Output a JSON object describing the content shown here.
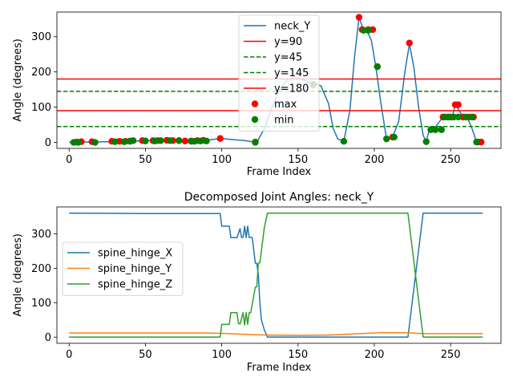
{
  "chart_data": [
    {
      "type": "line",
      "title": "",
      "xlabel": "Frame Index",
      "ylabel": "Angle (degrees)",
      "xlim": [
        -8,
        283
      ],
      "ylim": [
        -17,
        370
      ],
      "xticks": [
        0,
        50,
        100,
        150,
        200,
        250
      ],
      "yticks": [
        0,
        100,
        200,
        300
      ],
      "legend_position": "top-center",
      "series": [
        {
          "name": "neck_Y",
          "kind": "line",
          "color": "#1f77b4",
          "x": [
            0,
            5,
            10,
            15,
            20,
            25,
            30,
            35,
            40,
            45,
            50,
            55,
            60,
            65,
            70,
            75,
            80,
            85,
            90,
            95,
            100,
            105,
            110,
            115,
            120,
            123,
            128,
            133,
            138,
            143,
            148,
            153,
            158,
            161,
            165,
            170,
            173,
            176,
            180,
            184,
            187,
            190,
            192,
            195,
            198,
            201,
            204,
            208,
            212,
            216,
            220,
            223,
            226,
            229,
            232,
            234,
            236,
            239,
            242,
            245,
            248,
            251,
            253,
            255,
            258,
            261,
            264,
            267,
            270
          ],
          "values": [
            0,
            0,
            1,
            1,
            2,
            2,
            3,
            3,
            4,
            4,
            5,
            5,
            6,
            5,
            5,
            4,
            4,
            5,
            6,
            9,
            11,
            9,
            7,
            5,
            2,
            0,
            40,
            100,
            150,
            178,
            185,
            178,
            170,
            168,
            160,
            110,
            40,
            10,
            3,
            90,
            240,
            355,
            330,
            318,
            290,
            215,
            120,
            10,
            15,
            60,
            200,
            280,
            210,
            100,
            20,
            2,
            35,
            37,
            55,
            72,
            72,
            72,
            105,
            95,
            72,
            70,
            40,
            2,
            0
          ]
        },
        {
          "name": "y=90",
          "kind": "hline",
          "color": "#ff0000",
          "y": 90,
          "dash": "solid"
        },
        {
          "name": "y=45",
          "kind": "hline",
          "color": "#008000",
          "y": 45,
          "dash": "dashed"
        },
        {
          "name": "y=145",
          "kind": "hline",
          "color": "#008000",
          "y": 145,
          "dash": "dashed"
        },
        {
          "name": "y=180",
          "kind": "hline",
          "color": "#ff0000",
          "y": 180,
          "dash": "solid"
        },
        {
          "name": "max",
          "kind": "scatter",
          "color": "#ff0000",
          "x": [
            5,
            8,
            15,
            28,
            33,
            37,
            40,
            48,
            55,
            58,
            64,
            68,
            72,
            76,
            80,
            84,
            88,
            99,
            122,
            160,
            190,
            192,
            196,
            199,
            202,
            212,
            223,
            245,
            248,
            250,
            252,
            253,
            255,
            258,
            262,
            265,
            268,
            270
          ],
          "values": [
            1,
            2,
            2,
            3,
            3,
            3,
            4,
            5,
            5,
            5,
            6,
            5,
            5,
            4,
            4,
            5,
            6,
            11,
            1,
            165,
            355,
            320,
            320,
            320,
            215,
            15,
            282,
            72,
            72,
            72,
            72,
            107,
            107,
            72,
            72,
            72,
            1,
            1
          ]
        },
        {
          "name": "min",
          "kind": "scatter",
          "color": "#008000",
          "x": [
            3,
            6,
            17,
            30,
            36,
            40,
            42,
            50,
            56,
            60,
            66,
            72,
            80,
            82,
            86,
            90,
            122,
            160,
            180,
            193,
            196,
            202,
            208,
            213,
            234,
            237,
            240,
            244,
            246,
            249,
            252,
            255,
            260,
            264,
            267
          ],
          "values": [
            0,
            0,
            0,
            2,
            2,
            3,
            5,
            4,
            4,
            5,
            5,
            5,
            3,
            3,
            4,
            4,
            0,
            163,
            3,
            318,
            318,
            215,
            10,
            15,
            2,
            36,
            36,
            36,
            72,
            72,
            72,
            72,
            72,
            72,
            1
          ]
        }
      ]
    },
    {
      "type": "line",
      "title": "Decomposed Joint Angles: neck_Y",
      "xlabel": "Frame Index",
      "ylabel": "Angle (degrees)",
      "xlim": [
        -8,
        283
      ],
      "ylim": [
        -18,
        378
      ],
      "xticks": [
        0,
        50,
        100,
        150,
        200,
        250
      ],
      "yticks": [
        0,
        100,
        200,
        300
      ],
      "legend_position": "center-left",
      "series": [
        {
          "name": "spine_hinge_X",
          "color": "#1f77b4",
          "x": [
            0,
            50,
            99,
            100,
            105,
            106,
            110,
            112,
            113,
            114,
            115,
            116,
            117,
            118,
            119,
            120,
            122,
            123,
            124,
            125,
            126,
            128,
            130,
            222,
            232,
            271
          ],
          "values": [
            360,
            359,
            359,
            322,
            322,
            289,
            289,
            315,
            289,
            290,
            322,
            289,
            322,
            289,
            290,
            289,
            215,
            214,
            180,
            100,
            50,
            20,
            0,
            0,
            360,
            360
          ]
        },
        {
          "name": "spine_hinge_Y",
          "color": "#ff7f0e",
          "x": [
            0,
            50,
            90,
            100,
            110,
            120,
            130,
            150,
            170,
            190,
            205,
            215,
            225,
            232,
            271
          ],
          "values": [
            12,
            12,
            12,
            11,
            9,
            7,
            6,
            5,
            6,
            10,
            13,
            13,
            12,
            10,
            10
          ]
        },
        {
          "name": "spine_hinge_Z",
          "color": "#2ca02c",
          "x": [
            0,
            50,
            99,
            100,
            105,
            106,
            110,
            111,
            112,
            114,
            115,
            116,
            117,
            118,
            119,
            122,
            123,
            124,
            125,
            126,
            128,
            130,
            222,
            232,
            271
          ],
          "values": [
            0,
            0,
            0,
            37,
            37,
            71,
            71,
            40,
            38,
            71,
            35,
            71,
            37,
            71,
            71,
            145,
            146,
            215,
            216,
            250,
            320,
            360,
            360,
            0,
            0
          ]
        }
      ]
    }
  ]
}
